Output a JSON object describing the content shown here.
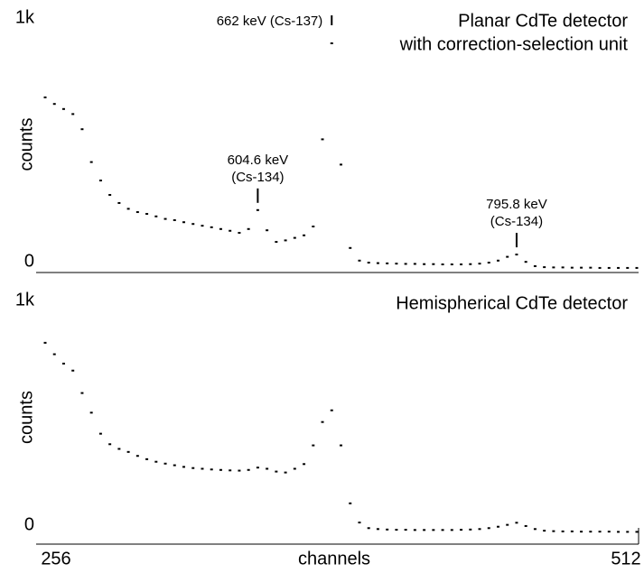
{
  "chart_data": [
    {
      "type": "scatter",
      "title": [
        "Planar CdTe detector",
        "with correction-selection unit"
      ],
      "ylabel": "counts",
      "color": "#000000",
      "xlim": [
        256,
        512
      ],
      "ylim": [
        0,
        1000
      ],
      "yticks": [
        0,
        {
          "value": 1000,
          "label": "1k"
        }
      ],
      "x": [
        256,
        260,
        264,
        268,
        272,
        276,
        280,
        284,
        288,
        292,
        296,
        300,
        304,
        308,
        312,
        316,
        320,
        324,
        328,
        332,
        336,
        340,
        344,
        348,
        352,
        356,
        360,
        364,
        368,
        372,
        376,
        380,
        384,
        388,
        392,
        396,
        400,
        404,
        408,
        412,
        416,
        420,
        424,
        428,
        432,
        436,
        440,
        444,
        448,
        452,
        456,
        460,
        464,
        468,
        472,
        476,
        480,
        484,
        488,
        492,
        496,
        500,
        504,
        508,
        512
      ],
      "values": [
        686,
        660,
        640,
        620,
        560,
        430,
        357,
        300,
        268,
        245,
        232,
        225,
        215,
        205,
        200,
        192,
        185,
        178,
        172,
        165,
        158,
        150,
        165,
        240,
        160,
        114,
        120,
        130,
        140,
        175,
        520,
        900,
        420,
        90,
        40,
        32,
        30,
        29,
        28,
        27,
        27,
        26,
        26,
        25,
        25,
        25,
        26,
        28,
        32,
        40,
        55,
        64,
        35,
        18,
        14,
        13,
        13,
        12,
        12,
        12,
        11,
        11,
        11,
        11,
        11
      ],
      "annotations": [
        {
          "x": 380,
          "text": [
            "662 keV (Cs-137)"
          ]
        },
        {
          "x": 348,
          "text": [
            "604.6 keV",
            "(Cs-134)"
          ]
        },
        {
          "x": 460,
          "text": [
            "795.8 keV",
            "(Cs-134)"
          ]
        }
      ]
    },
    {
      "type": "scatter",
      "title": [
        "Hemispherical CdTe detector"
      ],
      "ylabel": "counts",
      "xlabel": "channels",
      "color": "#000000",
      "xlim": [
        256,
        512
      ],
      "xticks": [
        256,
        512
      ],
      "ylim": [
        0,
        1000
      ],
      "yticks": [
        0,
        {
          "value": 1000,
          "label": "1k"
        }
      ],
      "x": [
        256,
        260,
        264,
        268,
        272,
        276,
        280,
        284,
        288,
        292,
        296,
        300,
        304,
        308,
        312,
        316,
        320,
        324,
        328,
        332,
        336,
        340,
        344,
        348,
        352,
        356,
        360,
        364,
        368,
        372,
        376,
        380,
        384,
        388,
        392,
        396,
        400,
        404,
        408,
        412,
        416,
        420,
        424,
        428,
        432,
        436,
        440,
        444,
        448,
        452,
        456,
        460,
        464,
        468,
        472,
        476,
        480,
        484,
        488,
        492,
        496,
        500,
        504,
        508,
        512
      ],
      "values": [
        819,
        770,
        730,
        700,
        604,
        520,
        430,
        385,
        365,
        352,
        335,
        321,
        310,
        302,
        295,
        288,
        283,
        280,
        277,
        275,
        273,
        272,
        275,
        285,
        280,
        268,
        264,
        280,
        300,
        380,
        480,
        530,
        380,
        132,
        50,
        26,
        22,
        20,
        19,
        19,
        18,
        18,
        18,
        18,
        18,
        19,
        20,
        22,
        26,
        32,
        40,
        49,
        35,
        22,
        15,
        13,
        12,
        12,
        11,
        11,
        11,
        11,
        10,
        10,
        10
      ]
    }
  ]
}
